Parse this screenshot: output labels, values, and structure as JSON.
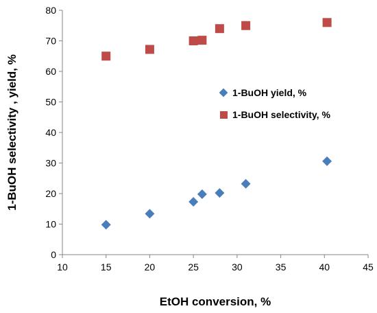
{
  "chart_data": {
    "type": "scatter",
    "xlabel": "EtOH conversion, %",
    "ylabel": "1-BuOH selectivity , yield, %",
    "xlim": [
      10,
      45
    ],
    "ylim": [
      0,
      80
    ],
    "xticks": [
      10,
      15,
      20,
      25,
      30,
      35,
      40,
      45
    ],
    "yticks": [
      0,
      10,
      20,
      30,
      40,
      50,
      60,
      70,
      80
    ],
    "grid": false,
    "legend_position": "right",
    "series": [
      {
        "name": "1-BuOH yield, %",
        "marker": "diamond",
        "color": "#4a7ebb",
        "points": [
          [
            15,
            9.8
          ],
          [
            20,
            13.4
          ],
          [
            25,
            17.3
          ],
          [
            26,
            19.8
          ],
          [
            28,
            20.2
          ],
          [
            31,
            23.2
          ],
          [
            40.3,
            30.6
          ]
        ]
      },
      {
        "name": "1-BuOH selectivity, %",
        "marker": "square",
        "color": "#be4b48",
        "points": [
          [
            15,
            65.0
          ],
          [
            20,
            67.2
          ],
          [
            25,
            70.0
          ],
          [
            26,
            70.2
          ],
          [
            28,
            74.0
          ],
          [
            31,
            75.0
          ],
          [
            40.3,
            76.0
          ]
        ]
      }
    ]
  }
}
